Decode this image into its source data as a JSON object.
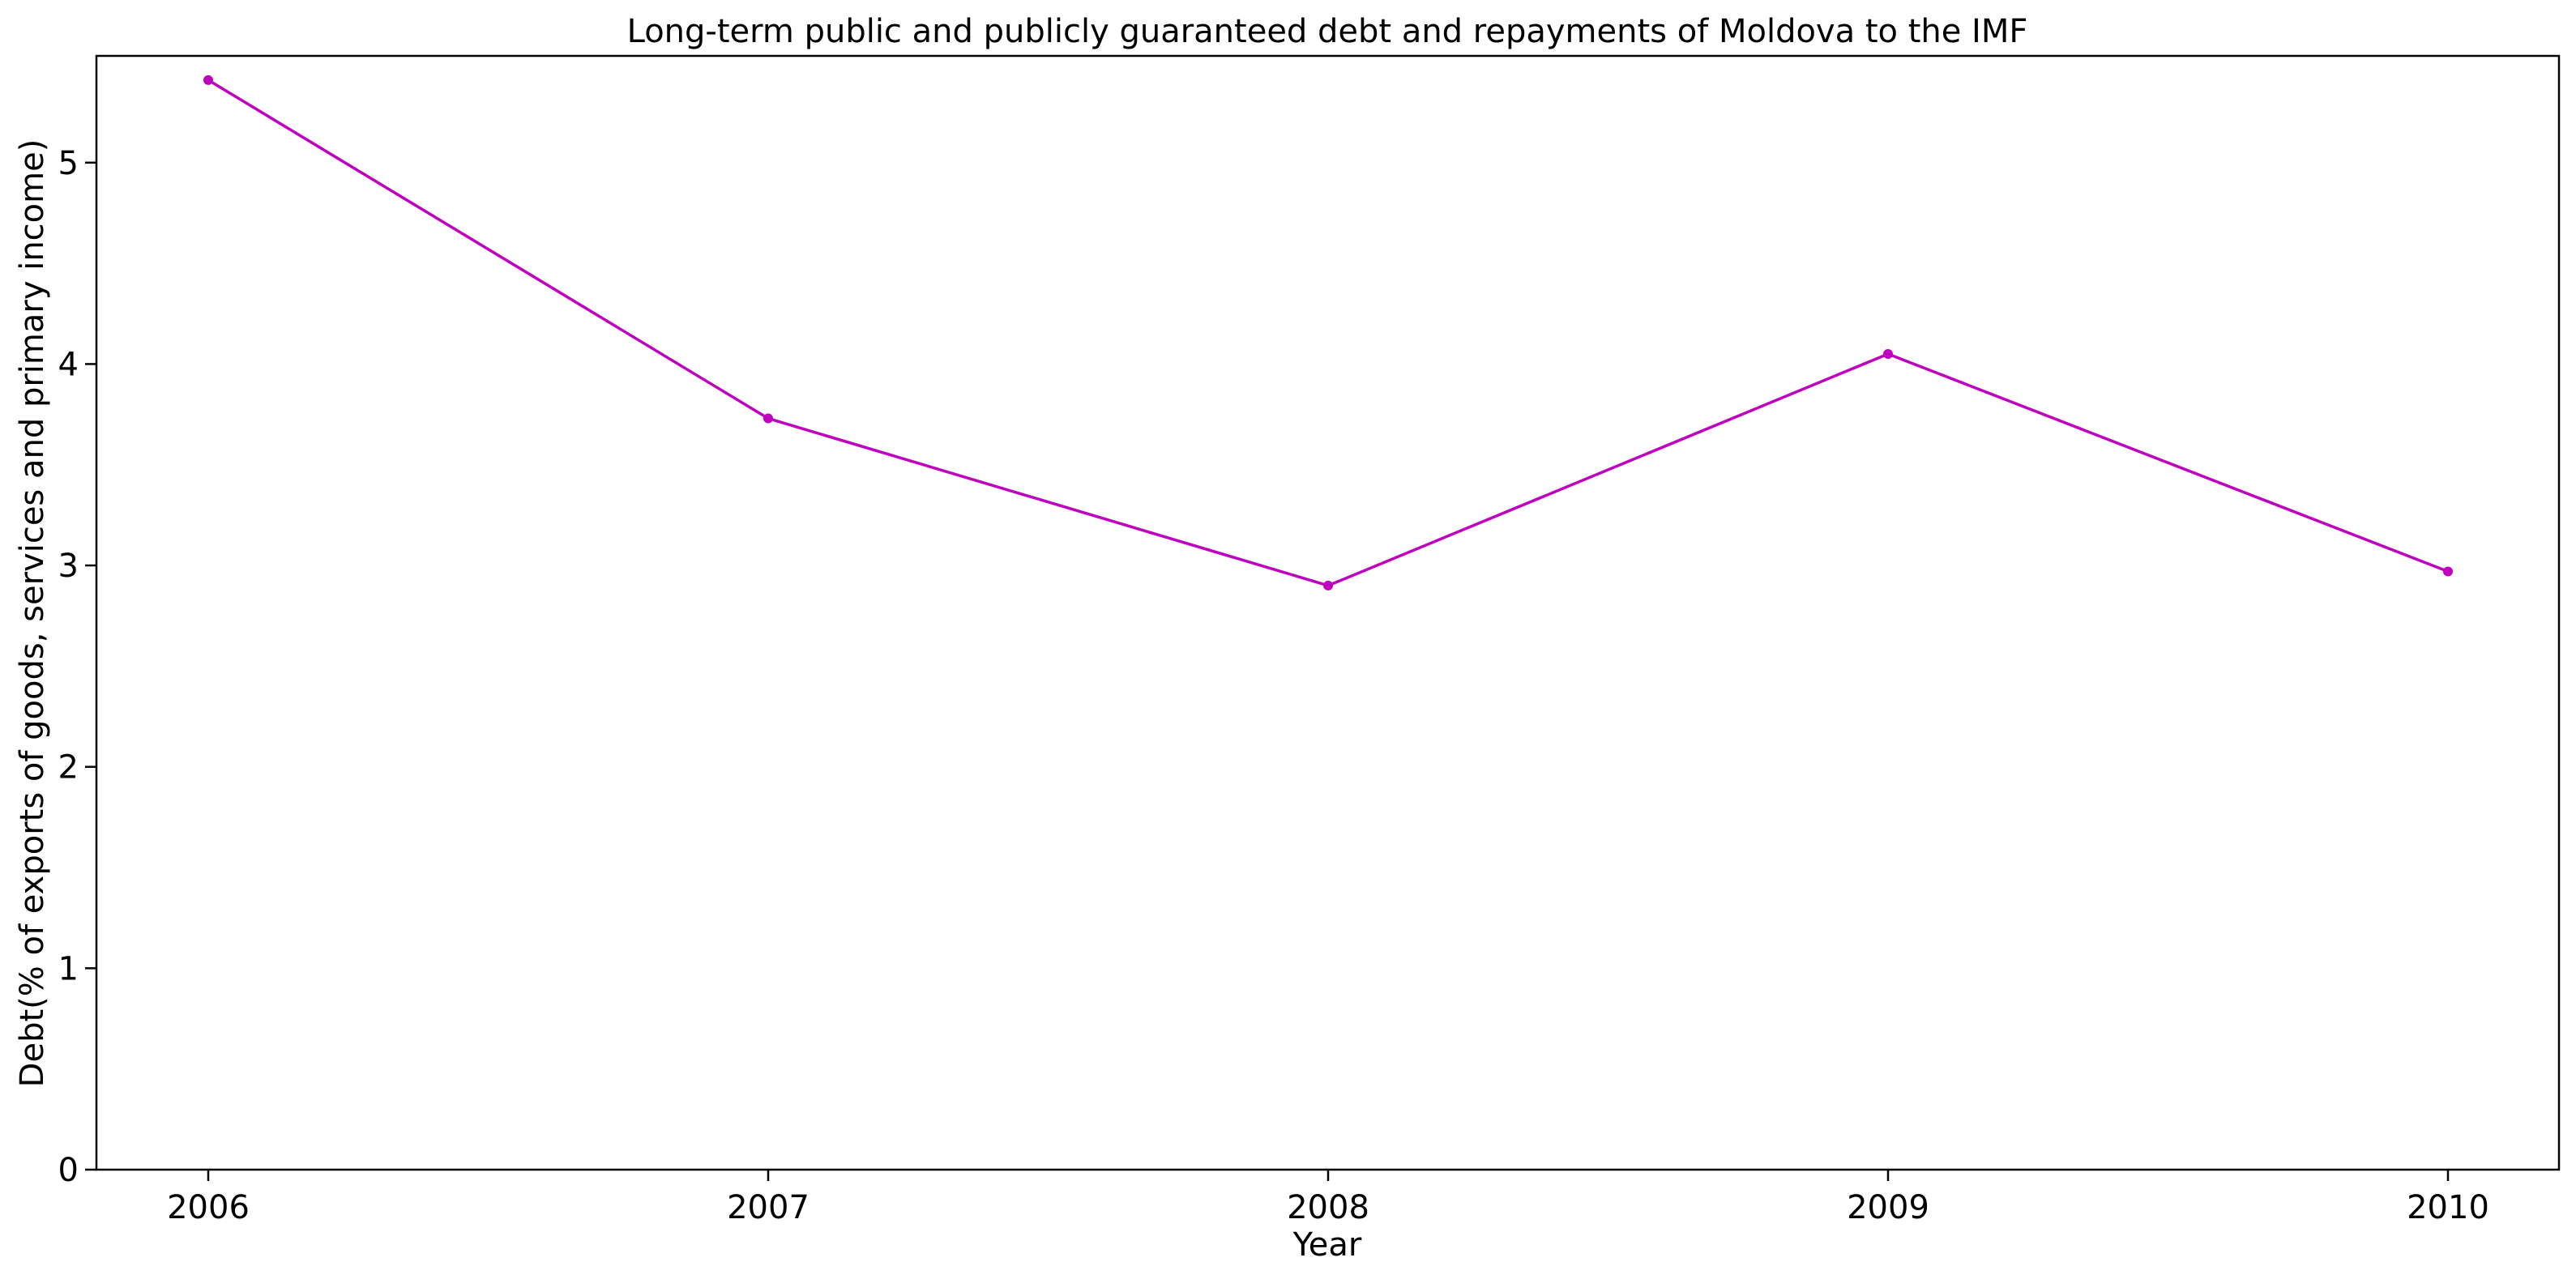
{
  "chart_data": {
    "type": "line",
    "title": "Long-term public and publicly guaranteed debt and repayments of Moldova to the IMF",
    "xlabel": "Year",
    "ylabel": "Debt(% of exports of goods, services and primary income)",
    "categories": [
      "2006",
      "2007",
      "2008",
      "2009",
      "2010"
    ],
    "series": [
      {
        "values": [
          5.41,
          3.73,
          2.9,
          4.05,
          2.97
        ],
        "color": "#bf00bf"
      }
    ],
    "yticks": [
      "0",
      "1",
      "2",
      "3",
      "4",
      "5"
    ],
    "ylim": [
      0,
      5.53
    ],
    "grid": false,
    "legend": "none"
  }
}
